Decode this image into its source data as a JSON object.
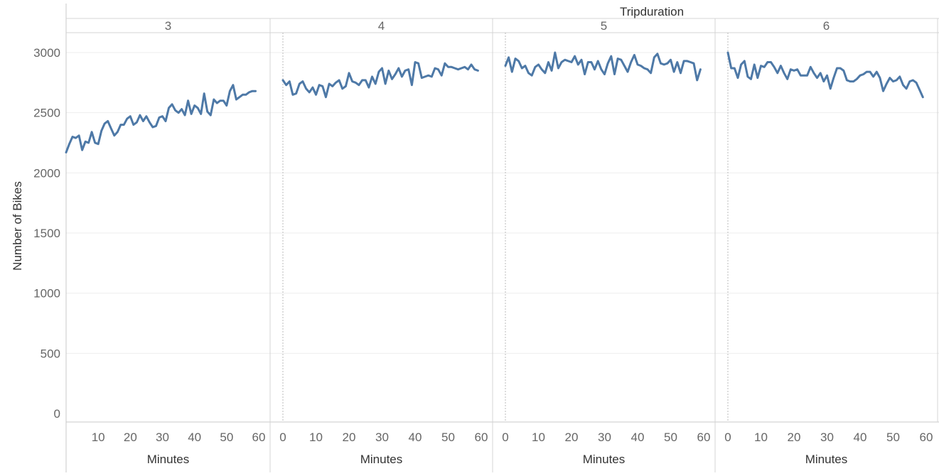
{
  "chart_data": {
    "type": "line",
    "title": "Tripduration",
    "ylabel": "Number of Bikes",
    "xlabel": "Minutes",
    "ylim": [
      0,
      3150
    ],
    "y_ticks": [
      0,
      500,
      1000,
      1500,
      2000,
      2500,
      3000
    ],
    "x_ticks": [
      0,
      10,
      20,
      30,
      40,
      50,
      60
    ],
    "xlim": [
      0,
      60
    ],
    "grid": "horizontal",
    "line_color": "#4e79a7",
    "panels": [
      {
        "label": "3",
        "x_ticks_shown": [
          10,
          20,
          30,
          40,
          50,
          60
        ],
        "x": [
          0,
          1,
          2,
          3,
          4,
          5,
          6,
          7,
          8,
          9,
          10,
          11,
          12,
          13,
          14,
          15,
          16,
          17,
          18,
          19,
          20,
          21,
          22,
          23,
          24,
          25,
          26,
          27,
          28,
          29,
          30,
          31,
          32,
          33,
          34,
          35,
          36,
          37,
          38,
          39,
          40,
          41,
          42,
          43,
          44,
          45,
          46,
          47,
          48,
          49,
          50,
          51,
          52,
          53,
          54,
          55,
          56,
          57,
          58,
          59
        ],
        "values": [
          2170,
          2240,
          2300,
          2290,
          2310,
          2190,
          2260,
          2250,
          2340,
          2250,
          2240,
          2350,
          2410,
          2430,
          2370,
          2310,
          2340,
          2400,
          2400,
          2450,
          2470,
          2400,
          2420,
          2480,
          2430,
          2470,
          2420,
          2380,
          2390,
          2460,
          2470,
          2430,
          2540,
          2570,
          2520,
          2500,
          2530,
          2480,
          2600,
          2490,
          2560,
          2540,
          2490,
          2660,
          2510,
          2480,
          2610,
          2580,
          2600,
          2600,
          2560,
          2680,
          2730,
          2610,
          2630,
          2650,
          2650,
          2670,
          2680,
          2680
        ]
      },
      {
        "label": "4",
        "x_ticks_shown": [
          0,
          10,
          20,
          30,
          40,
          50,
          60
        ],
        "x": [
          0,
          1,
          2,
          3,
          4,
          5,
          6,
          7,
          8,
          9,
          10,
          11,
          12,
          13,
          14,
          15,
          16,
          17,
          18,
          19,
          20,
          21,
          22,
          23,
          24,
          25,
          26,
          27,
          28,
          29,
          30,
          31,
          32,
          33,
          34,
          35,
          36,
          37,
          38,
          39,
          40,
          41,
          42,
          43,
          44,
          45,
          46,
          47,
          48,
          49,
          50,
          51,
          52,
          53,
          54,
          55,
          56,
          57,
          58,
          59
        ],
        "values": [
          2770,
          2730,
          2760,
          2650,
          2660,
          2740,
          2760,
          2700,
          2670,
          2710,
          2650,
          2730,
          2720,
          2630,
          2740,
          2720,
          2750,
          2770,
          2700,
          2720,
          2830,
          2760,
          2750,
          2730,
          2770,
          2770,
          2710,
          2800,
          2740,
          2840,
          2870,
          2740,
          2850,
          2780,
          2820,
          2870,
          2800,
          2850,
          2860,
          2730,
          2920,
          2910,
          2790,
          2800,
          2810,
          2800,
          2870,
          2860,
          2810,
          2910,
          2880,
          2880,
          2870,
          2860,
          2870,
          2880,
          2860,
          2900,
          2860,
          2850
        ]
      },
      {
        "label": "5",
        "x_ticks_shown": [
          0,
          10,
          20,
          30,
          40,
          50,
          60
        ],
        "x": [
          0,
          1,
          2,
          3,
          4,
          5,
          6,
          7,
          8,
          9,
          10,
          11,
          12,
          13,
          14,
          15,
          16,
          17,
          18,
          19,
          20,
          21,
          22,
          23,
          24,
          25,
          26,
          27,
          28,
          29,
          30,
          31,
          32,
          33,
          34,
          35,
          36,
          37,
          38,
          39,
          40,
          41,
          42,
          43,
          44,
          45,
          46,
          47,
          48,
          49,
          50,
          51,
          52,
          53,
          54,
          55,
          56,
          57,
          58,
          59
        ],
        "values": [
          2890,
          2960,
          2840,
          2950,
          2930,
          2870,
          2890,
          2830,
          2810,
          2880,
          2900,
          2860,
          2830,
          2920,
          2850,
          3000,
          2870,
          2920,
          2940,
          2930,
          2920,
          2970,
          2900,
          2940,
          2820,
          2920,
          2920,
          2860,
          2930,
          2860,
          2820,
          2910,
          2970,
          2820,
          2950,
          2940,
          2890,
          2840,
          2920,
          2980,
          2900,
          2890,
          2870,
          2860,
          2830,
          2960,
          2990,
          2910,
          2900,
          2910,
          2940,
          2840,
          2920,
          2830,
          2930,
          2930,
          2920,
          2910,
          2770,
          2860
        ]
      },
      {
        "label": "6",
        "x_ticks_shown": [
          0,
          10,
          20,
          30,
          40,
          50,
          60
        ],
        "x": [
          0,
          1,
          2,
          3,
          4,
          5,
          6,
          7,
          8,
          9,
          10,
          11,
          12,
          13,
          14,
          15,
          16,
          17,
          18,
          19,
          20,
          21,
          22,
          23,
          24,
          25,
          26,
          27,
          28,
          29,
          30,
          31,
          32,
          33,
          34,
          35,
          36,
          37,
          38,
          39,
          40,
          41,
          42,
          43,
          44,
          45,
          46,
          47,
          48,
          49,
          50,
          51,
          52,
          53,
          54,
          55,
          56,
          57,
          58,
          59
        ],
        "values": [
          3000,
          2870,
          2870,
          2790,
          2900,
          2930,
          2800,
          2780,
          2900,
          2790,
          2890,
          2880,
          2920,
          2920,
          2880,
          2830,
          2890,
          2830,
          2780,
          2860,
          2850,
          2860,
          2810,
          2810,
          2810,
          2880,
          2830,
          2790,
          2830,
          2760,
          2810,
          2700,
          2790,
          2870,
          2870,
          2850,
          2770,
          2760,
          2760,
          2780,
          2810,
          2820,
          2840,
          2840,
          2800,
          2840,
          2790,
          2680,
          2740,
          2790,
          2760,
          2770,
          2800,
          2730,
          2700,
          2760,
          2770,
          2750,
          2690,
          2630
        ]
      }
    ]
  }
}
